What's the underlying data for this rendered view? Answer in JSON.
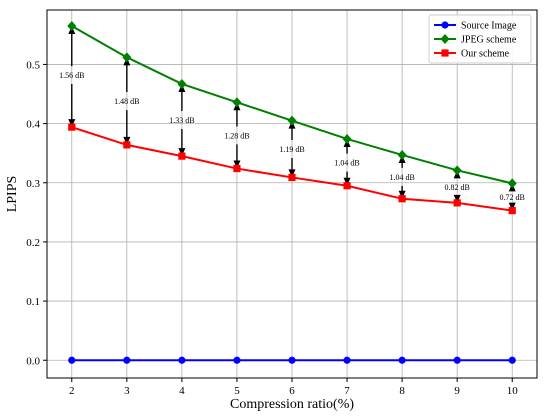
{
  "chart_data": {
    "type": "line",
    "xlabel": "Compression ratio(%)",
    "ylabel": "LPIPS",
    "x": [
      2,
      3,
      4,
      5,
      6,
      7,
      8,
      9,
      10
    ],
    "xlim": [
      1.55,
      10.45
    ],
    "ylim": [
      -0.03,
      0.592
    ],
    "xticks": [
      "2",
      "3",
      "4",
      "5",
      "6",
      "7",
      "8",
      "9",
      "10"
    ],
    "yticks": [
      "0.0",
      "0.1",
      "0.2",
      "0.3",
      "0.4",
      "0.5"
    ],
    "ytick_values": [
      0.0,
      0.1,
      0.2,
      0.3,
      0.4,
      0.5
    ],
    "grid": true,
    "legend_position": "top-right",
    "series": [
      {
        "name": "Source Image",
        "color": "#0000ff",
        "marker": "circle",
        "values": [
          0.0,
          0.0,
          0.0,
          0.0,
          0.0,
          0.0,
          0.0,
          0.0,
          0.0
        ]
      },
      {
        "name": "JPEG scheme",
        "color": "#008000",
        "marker": "diamond",
        "values": [
          0.565,
          0.512,
          0.467,
          0.436,
          0.405,
          0.374,
          0.347,
          0.321,
          0.299
        ]
      },
      {
        "name": "Our scheme",
        "color": "#ff0000",
        "marker": "square",
        "values": [
          0.394,
          0.364,
          0.345,
          0.324,
          0.309,
          0.295,
          0.273,
          0.266,
          0.253
        ]
      }
    ],
    "annotations": [
      {
        "x": 2,
        "text": "1.56 dB",
        "y": 0.482
      },
      {
        "x": 3,
        "text": "1.48 dB",
        "y": 0.438
      },
      {
        "x": 4,
        "text": "1.33 dB",
        "y": 0.406
      },
      {
        "x": 5,
        "text": "1.28 dB",
        "y": 0.38
      },
      {
        "x": 6,
        "text": "1.19 dB",
        "y": 0.357
      },
      {
        "x": 7,
        "text": "1.04 dB",
        "y": 0.334
      },
      {
        "x": 8,
        "text": "1.04 dB",
        "y": 0.31
      },
      {
        "x": 9,
        "text": "0.82 dB",
        "y": 0.293
      },
      {
        "x": 10,
        "text": "0.72 dB",
        "y": 0.276
      }
    ]
  }
}
